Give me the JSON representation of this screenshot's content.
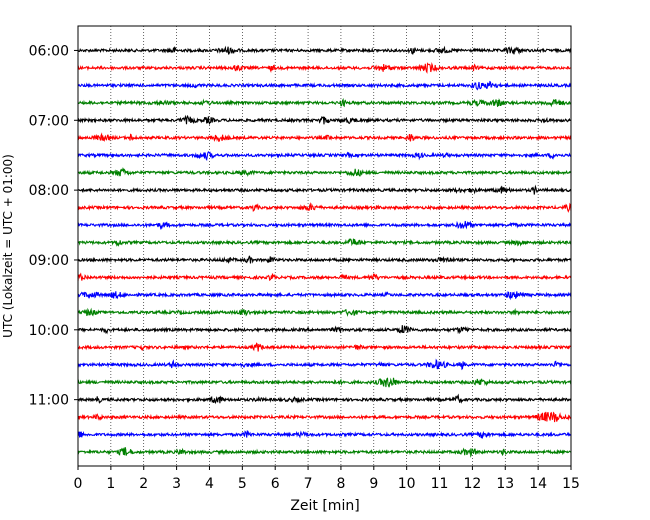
{
  "chart_data": {
    "type": "line",
    "title": "",
    "xlabel": "Zeit  [min]",
    "ylabel": "UTC (Lokalzeit = UTC + 01:00)",
    "xlim": [
      0,
      15
    ],
    "x_ticks": [
      "0",
      "1",
      "2",
      "3",
      "4",
      "5",
      "6",
      "7",
      "8",
      "9",
      "10",
      "11",
      "12",
      "13",
      "14",
      "15"
    ],
    "y_tick_labels": [
      "06:00",
      "07:00",
      "08:00",
      "09:00",
      "10:00",
      "11:00"
    ],
    "y_tick_hours": [
      6,
      7,
      8,
      9,
      10,
      11
    ],
    "ylim_hours": [
      5.65,
      11.95
    ],
    "grid": "vertical dotted",
    "trace_interval_minutes": 15,
    "series": [
      {
        "start": "06:00",
        "color": "#000000"
      },
      {
        "start": "06:15",
        "color": "#ff0000"
      },
      {
        "start": "06:30",
        "color": "#0000ff"
      },
      {
        "start": "06:45",
        "color": "#008000"
      },
      {
        "start": "07:00",
        "color": "#000000"
      },
      {
        "start": "07:15",
        "color": "#ff0000"
      },
      {
        "start": "07:30",
        "color": "#0000ff"
      },
      {
        "start": "07:45",
        "color": "#008000"
      },
      {
        "start": "08:00",
        "color": "#000000"
      },
      {
        "start": "08:15",
        "color": "#ff0000"
      },
      {
        "start": "08:30",
        "color": "#0000ff"
      },
      {
        "start": "08:45",
        "color": "#008000"
      },
      {
        "start": "09:00",
        "color": "#000000"
      },
      {
        "start": "09:15",
        "color": "#ff0000"
      },
      {
        "start": "09:30",
        "color": "#0000ff"
      },
      {
        "start": "09:45",
        "color": "#008000"
      },
      {
        "start": "10:00",
        "color": "#000000"
      },
      {
        "start": "10:15",
        "color": "#ff0000"
      },
      {
        "start": "10:30",
        "color": "#0000ff"
      },
      {
        "start": "10:45",
        "color": "#008000"
      },
      {
        "start": "11:00",
        "color": "#000000"
      },
      {
        "start": "11:15",
        "color": "#ff0000"
      },
      {
        "start": "11:30",
        "color": "#0000ff"
      },
      {
        "start": "11:45",
        "color": "#008000"
      }
    ]
  }
}
